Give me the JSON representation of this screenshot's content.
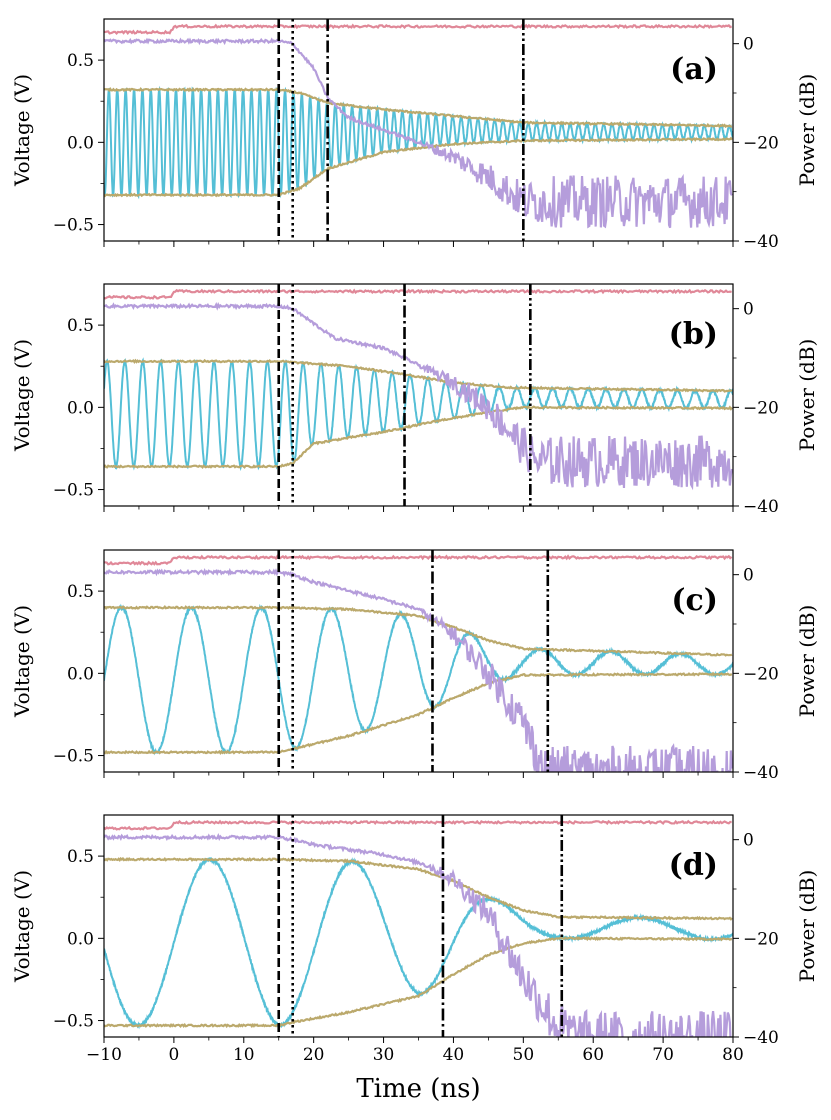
{
  "chart_data": {
    "type": "line",
    "figure": {
      "xlabel": "Time (ns)",
      "xlim": [
        -10,
        80
      ],
      "xticks": [
        -10,
        0,
        10,
        20,
        30,
        40,
        50,
        60,
        70,
        80
      ],
      "xtick_labels": [
        "−10",
        "0",
        "10",
        "20",
        "30",
        "40",
        "50",
        "60",
        "70",
        "80"
      ],
      "ylabel_left": "Voltage (V)",
      "ylabel_right": "Power (dB)",
      "ylim_left": [
        -0.6,
        0.75
      ],
      "ylim_right": [
        -40,
        5
      ],
      "yticks_left": [
        -0.5,
        0.0,
        0.5
      ],
      "ytick_labels_left": [
        "−0.5",
        "0.0",
        "0.5"
      ],
      "yticks_right": [
        -40,
        -20,
        0
      ],
      "ytick_labels_right": [
        "−40",
        "−20",
        "0"
      ],
      "colors": {
        "voltage": "#55bfd6",
        "envelope": "#bba96c",
        "power": "#b59ddb",
        "reference": "#e08898",
        "markers": "#000000"
      },
      "series_names": [
        "Voltage",
        "Envelope (upper)",
        "Envelope (lower)",
        "Power",
        "Reference power"
      ]
    },
    "panels": [
      {
        "label": "(a)",
        "period_ns": 1.2,
        "amp": 0.31,
        "offset": -0.005,
        "v_final_offset": 0.025,
        "v_final_amp": 0.02,
        "env_upper": [
          [
            -10,
            0.32
          ],
          [
            15,
            0.32
          ],
          [
            18,
            0.3
          ],
          [
            22,
            0.24
          ],
          [
            30,
            0.2
          ],
          [
            40,
            0.16
          ],
          [
            50,
            0.12
          ],
          [
            80,
            0.1
          ]
        ],
        "env_lower": [
          [
            -10,
            -0.32
          ],
          [
            15,
            -0.32
          ],
          [
            18,
            -0.28
          ],
          [
            22,
            -0.16
          ],
          [
            30,
            -0.06
          ],
          [
            40,
            -0.01
          ],
          [
            50,
            0.01
          ],
          [
            80,
            0.02
          ]
        ],
        "power": [
          [
            -10,
            0.5
          ],
          [
            15,
            0.5
          ],
          [
            17,
            0
          ],
          [
            20,
            -5
          ],
          [
            22,
            -11
          ],
          [
            25,
            -15
          ],
          [
            35,
            -20
          ],
          [
            40,
            -23
          ],
          [
            45,
            -27
          ],
          [
            50,
            -32
          ],
          [
            80,
            -32
          ]
        ],
        "reference": [
          [
            -10,
            2.3
          ],
          [
            -0.5,
            2.3
          ],
          [
            0,
            3.5
          ],
          [
            1,
            3.5
          ],
          [
            80,
            3.5
          ]
        ],
        "markers": [
          {
            "x": 15,
            "style": "dashed"
          },
          {
            "x": 17,
            "style": "dotted"
          },
          {
            "x": 22,
            "style": "dashdot"
          },
          {
            "x": 50,
            "style": "dashdotdot"
          }
        ]
      },
      {
        "label": "(b)",
        "period_ns": 2.55,
        "amp": 0.3,
        "offset": -0.04,
        "v_final_offset": 0.04,
        "v_final_amp": 0.02,
        "env_upper": [
          [
            -10,
            0.28
          ],
          [
            15,
            0.28
          ],
          [
            25,
            0.25
          ],
          [
            33,
            0.2
          ],
          [
            40,
            0.15
          ],
          [
            48,
            0.12
          ],
          [
            80,
            0.1
          ]
        ],
        "env_lower": [
          [
            -10,
            -0.36
          ],
          [
            15,
            -0.36
          ],
          [
            17,
            -0.34
          ],
          [
            20,
            -0.22
          ],
          [
            30,
            -0.15
          ],
          [
            38,
            -0.08
          ],
          [
            45,
            -0.03
          ],
          [
            50,
            0
          ],
          [
            80,
            -0.005
          ]
        ],
        "power": [
          [
            -10,
            0.5
          ],
          [
            15,
            0.5
          ],
          [
            17,
            0
          ],
          [
            20,
            -3
          ],
          [
            23,
            -6
          ],
          [
            30,
            -8
          ],
          [
            33,
            -10
          ],
          [
            40,
            -15
          ],
          [
            45,
            -20
          ],
          [
            50,
            -28
          ],
          [
            52,
            -31
          ],
          [
            80,
            -31
          ]
        ],
        "reference": [
          [
            -10,
            2.3
          ],
          [
            -0.5,
            2.3
          ],
          [
            0,
            3.5
          ],
          [
            1,
            3.5
          ],
          [
            80,
            3.5
          ]
        ],
        "markers": [
          {
            "x": 15,
            "style": "dashed"
          },
          {
            "x": 17,
            "style": "dotted"
          },
          {
            "x": 33,
            "style": "dashdot"
          },
          {
            "x": 51,
            "style": "dashdotdot"
          }
        ]
      },
      {
        "label": "(c)",
        "period_ns": 10.0,
        "amp": 0.41,
        "offset": -0.045,
        "v_final_offset": 0.05,
        "v_final_amp": 0.015,
        "env_upper": [
          [
            -10,
            0.4
          ],
          [
            15,
            0.4
          ],
          [
            25,
            0.39
          ],
          [
            35,
            0.35
          ],
          [
            40,
            0.28
          ],
          [
            45,
            0.2
          ],
          [
            50,
            0.15
          ],
          [
            80,
            0.11
          ]
        ],
        "env_lower": [
          [
            -10,
            -0.48
          ],
          [
            15,
            -0.48
          ],
          [
            17,
            -0.46
          ],
          [
            25,
            -0.38
          ],
          [
            35,
            -0.25
          ],
          [
            40,
            -0.15
          ],
          [
            45,
            -0.06
          ],
          [
            50,
            -0.01
          ],
          [
            80,
            -0.005
          ]
        ],
        "power": [
          [
            -10,
            0.5
          ],
          [
            15,
            0.5
          ],
          [
            17,
            0
          ],
          [
            20,
            -1.5
          ],
          [
            30,
            -5
          ],
          [
            35,
            -7
          ],
          [
            40,
            -12
          ],
          [
            45,
            -20
          ],
          [
            50,
            -30
          ],
          [
            53,
            -40
          ],
          [
            80,
            -40
          ]
        ],
        "reference": [
          [
            -10,
            2.3
          ],
          [
            -0.5,
            2.3
          ],
          [
            0,
            3.5
          ],
          [
            1,
            3.5
          ],
          [
            80,
            3.5
          ]
        ],
        "markers": [
          {
            "x": 15,
            "style": "dashed"
          },
          {
            "x": 17,
            "style": "dotted"
          },
          {
            "x": 37,
            "style": "dashdot"
          },
          {
            "x": 53.5,
            "style": "dashdotdot"
          }
        ]
      },
      {
        "label": "(d)",
        "period_ns": 20.5,
        "amp": 0.48,
        "offset": -0.025,
        "v_final_offset": 0.05,
        "v_final_amp": 0.015,
        "env_upper": [
          [
            -10,
            0.48
          ],
          [
            15,
            0.48
          ],
          [
            25,
            0.47
          ],
          [
            35,
            0.42
          ],
          [
            40,
            0.35
          ],
          [
            45,
            0.25
          ],
          [
            50,
            0.17
          ],
          [
            55,
            0.13
          ],
          [
            80,
            0.12
          ]
        ],
        "env_lower": [
          [
            -10,
            -0.53
          ],
          [
            15,
            -0.53
          ],
          [
            17,
            -0.51
          ],
          [
            25,
            -0.45
          ],
          [
            35,
            -0.35
          ],
          [
            40,
            -0.22
          ],
          [
            45,
            -0.1
          ],
          [
            50,
            -0.03
          ],
          [
            55,
            0
          ],
          [
            80,
            -0.005
          ]
        ],
        "power": [
          [
            -10,
            0.5
          ],
          [
            15,
            0.5
          ],
          [
            17,
            0
          ],
          [
            20,
            -1
          ],
          [
            30,
            -3
          ],
          [
            36,
            -5
          ],
          [
            40,
            -8
          ],
          [
            45,
            -15
          ],
          [
            50,
            -28
          ],
          [
            55,
            -38
          ],
          [
            58,
            -40
          ],
          [
            80,
            -40
          ]
        ],
        "reference": [
          [
            -10,
            2.3
          ],
          [
            -0.5,
            2.3
          ],
          [
            0,
            3.5
          ],
          [
            1,
            3.5
          ],
          [
            80,
            3.5
          ]
        ],
        "markers": [
          {
            "x": 15,
            "style": "dashed"
          },
          {
            "x": 17,
            "style": "dotted"
          },
          {
            "x": 38.5,
            "style": "dashdot"
          },
          {
            "x": 55.5,
            "style": "dashdotdot"
          }
        ]
      }
    ]
  }
}
